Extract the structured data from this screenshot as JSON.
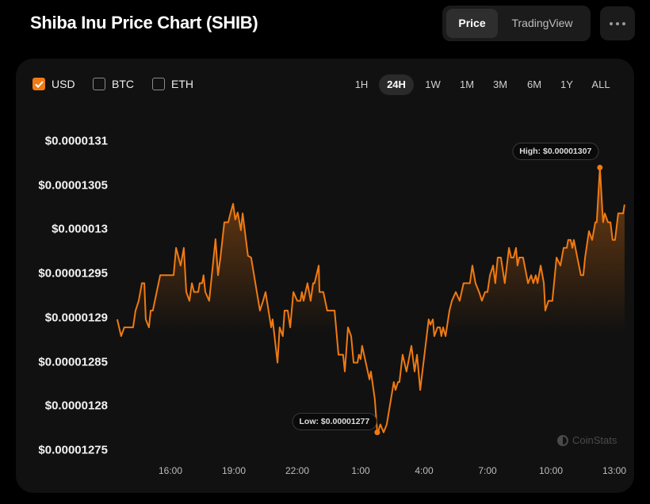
{
  "header": {
    "title": "Shiba Inu Price Chart (SHIB)",
    "view_options": [
      "Price",
      "TradingView"
    ],
    "active_view": "Price"
  },
  "currencies": [
    {
      "label": "USD",
      "checked": true
    },
    {
      "label": "BTC",
      "checked": false
    },
    {
      "label": "ETH",
      "checked": false
    }
  ],
  "ranges": [
    "1H",
    "24H",
    "1W",
    "1M",
    "3M",
    "6M",
    "1Y",
    "ALL"
  ],
  "active_range": "24H",
  "colors": {
    "accent": "#f07a12",
    "background": "#000000",
    "card": "#111111"
  },
  "watermark": "CoinStats",
  "chart_data": {
    "type": "area",
    "title": "",
    "xlabel": "",
    "ylabel": "",
    "y_ticks": [
      "$0.0000131",
      "$0.00001305",
      "$0.000013",
      "$0.00001295",
      "$0.0000129",
      "$0.00001285",
      "$0.0000128",
      "$0.00001275"
    ],
    "y_tick_values": [
      1.31e-05,
      1.305e-05,
      1.3e-05,
      1.295e-05,
      1.29e-05,
      1.285e-05,
      1.28e-05,
      1.275e-05
    ],
    "x_ticks": [
      "16:00",
      "19:00",
      "22:00",
      "1:00",
      "4:00",
      "7:00",
      "10:00",
      "13:00"
    ],
    "ylim": [
      1.275e-05,
      1.31e-05
    ],
    "grid": false,
    "high_label": "High: $0.00001307",
    "low_label": "Low: $0.00001277",
    "high": {
      "x": "12:19",
      "y": 1.307e-05
    },
    "low": {
      "x": "01:47",
      "y": 1.277e-05
    },
    "points": [
      [
        "13:29",
        1.2898e-05
      ],
      [
        "13:40",
        1.2879e-05
      ],
      [
        "13:49",
        1.2889e-05
      ],
      [
        "14:14",
        1.2889e-05
      ],
      [
        "14:21",
        1.2908e-05
      ],
      [
        "14:30",
        1.2919e-05
      ],
      [
        "14:39",
        1.2939e-05
      ],
      [
        "14:46",
        1.2939e-05
      ],
      [
        "14:50",
        1.2898e-05
      ],
      [
        "14:59",
        1.2889e-05
      ],
      [
        "15:04",
        1.2908e-05
      ],
      [
        "15:10",
        1.2908e-05
      ],
      [
        "15:31",
        1.2948e-05
      ],
      [
        "16:09",
        1.2948e-05
      ],
      [
        "16:16",
        1.2979e-05
      ],
      [
        "16:29",
        1.2959e-05
      ],
      [
        "16:38",
        1.2979e-05
      ],
      [
        "16:45",
        1.2929e-05
      ],
      [
        "16:54",
        1.2919e-05
      ],
      [
        "17:01",
        1.2939e-05
      ],
      [
        "17:07",
        1.2929e-05
      ],
      [
        "17:19",
        1.2929e-05
      ],
      [
        "17:23",
        1.2939e-05
      ],
      [
        "17:30",
        1.2939e-05
      ],
      [
        "17:34",
        1.2948e-05
      ],
      [
        "17:39",
        1.2929e-05
      ],
      [
        "17:50",
        1.2919e-05
      ],
      [
        "18:08",
        1.2989e-05
      ],
      [
        "18:15",
        1.2948e-05
      ],
      [
        "18:22",
        1.2968e-05
      ],
      [
        "18:33",
        1.3008e-05
      ],
      [
        "18:44",
        1.3008e-05
      ],
      [
        "18:51",
        1.3019e-05
      ],
      [
        "18:58",
        1.3029e-05
      ],
      [
        "19:04",
        1.3011e-05
      ],
      [
        "19:11",
        1.3019e-05
      ],
      [
        "19:20",
        1.2999e-05
      ],
      [
        "19:25",
        1.3018e-05
      ],
      [
        "19:40",
        1.297e-05
      ],
      [
        "19:49",
        1.2968e-05
      ],
      [
        "20:14",
        1.2908e-05
      ],
      [
        "20:23",
        1.2919e-05
      ],
      [
        "20:30",
        1.2929e-05
      ],
      [
        "20:46",
        1.2889e-05
      ],
      [
        "20:50",
        1.2898e-05
      ],
      [
        "21:04",
        1.2849e-05
      ],
      [
        "21:10",
        1.2889e-05
      ],
      [
        "21:19",
        1.2879e-05
      ],
      [
        "21:24",
        1.2908e-05
      ],
      [
        "21:33",
        1.2908e-05
      ],
      [
        "21:40",
        1.2889e-05
      ],
      [
        "21:49",
        1.2929e-05
      ],
      [
        "22:00",
        1.2919e-05
      ],
      [
        "22:09",
        1.2919e-05
      ],
      [
        "22:13",
        1.2929e-05
      ],
      [
        "22:18",
        1.2919e-05
      ],
      [
        "22:29",
        1.2939e-05
      ],
      [
        "22:38",
        1.2919e-05
      ],
      [
        "22:45",
        1.2939e-05
      ],
      [
        "22:49",
        1.2939e-05
      ],
      [
        "23:01",
        1.2959e-05
      ],
      [
        "23:03",
        1.2929e-05
      ],
      [
        "23:14",
        1.2929e-05
      ],
      [
        "23:25",
        1.2908e-05
      ],
      [
        "23:46",
        1.2908e-05
      ],
      [
        "23:57",
        1.2858e-05
      ],
      [
        "00:10",
        1.2858e-05
      ],
      [
        "00:15",
        1.2839e-05
      ],
      [
        "00:24",
        1.2889e-05
      ],
      [
        "00:33",
        1.2879e-05
      ],
      [
        "00:40",
        1.2849e-05
      ],
      [
        "00:51",
        1.2849e-05
      ],
      [
        "00:55",
        1.2858e-05
      ],
      [
        "01:00",
        1.2853e-05
      ],
      [
        "01:04",
        1.2868e-05
      ],
      [
        "01:25",
        1.283e-05
      ],
      [
        "01:29",
        1.2839e-05
      ],
      [
        "01:40",
        1.2808e-05
      ],
      [
        "01:47",
        1.277e-05
      ],
      [
        "01:49",
        1.277e-05
      ],
      [
        "01:56",
        1.2779e-05
      ],
      [
        "02:05",
        1.277e-05
      ],
      [
        "02:14",
        1.2779e-05
      ],
      [
        "02:34",
        1.2827e-05
      ],
      [
        "02:39",
        1.2818e-05
      ],
      [
        "02:46",
        1.2827e-05
      ],
      [
        "02:50",
        1.2827e-05
      ],
      [
        "02:59",
        1.2858e-05
      ],
      [
        "03:10",
        1.2839e-05
      ],
      [
        "03:24",
        1.2868e-05
      ],
      [
        "03:33",
        1.2839e-05
      ],
      [
        "03:40",
        1.2858e-05
      ],
      [
        "03:49",
        1.2818e-05
      ],
      [
        "04:04",
        1.2868e-05
      ],
      [
        "04:13",
        1.2898e-05
      ],
      [
        "04:18",
        1.2892e-05
      ],
      [
        "04:25",
        1.2898e-05
      ],
      [
        "04:29",
        1.2879e-05
      ],
      [
        "04:38",
        1.2889e-05
      ],
      [
        "04:45",
        1.2889e-05
      ],
      [
        "04:49",
        1.2879e-05
      ],
      [
        "04:54",
        1.2889e-05
      ],
      [
        "05:01",
        1.2879e-05
      ],
      [
        "05:12",
        1.2908e-05
      ],
      [
        "05:19",
        1.2919e-05
      ],
      [
        "05:30",
        1.2929e-05
      ],
      [
        "05:41",
        1.2919e-05
      ],
      [
        "05:52",
        1.2939e-05
      ],
      [
        "06:10",
        1.2939e-05
      ],
      [
        "06:17",
        1.2959e-05
      ],
      [
        "06:26",
        1.2939e-05
      ],
      [
        "06:37",
        1.2928e-05
      ],
      [
        "06:44",
        1.2919e-05
      ],
      [
        "06:53",
        1.2929e-05
      ],
      [
        "07:00",
        1.2929e-05
      ],
      [
        "07:07",
        1.2948e-05
      ],
      [
        "07:16",
        1.2959e-05
      ],
      [
        "07:22",
        1.2939e-05
      ],
      [
        "07:29",
        1.2968e-05
      ],
      [
        "07:38",
        1.2968e-05
      ],
      [
        "07:49",
        1.2939e-05
      ],
      [
        "08:01",
        1.2979e-05
      ],
      [
        "08:07",
        1.2968e-05
      ],
      [
        "08:14",
        1.2968e-05
      ],
      [
        "08:21",
        1.2979e-05
      ],
      [
        "08:25",
        1.2959e-05
      ],
      [
        "08:30",
        1.2968e-05
      ],
      [
        "08:41",
        1.2968e-05
      ],
      [
        "08:55",
        1.2939e-05
      ],
      [
        "09:04",
        1.2948e-05
      ],
      [
        "09:10",
        1.2939e-05
      ],
      [
        "09:17",
        1.2948e-05
      ],
      [
        "09:22",
        1.2939e-05
      ],
      [
        "09:31",
        1.2959e-05
      ],
      [
        "09:40",
        1.2939e-05
      ],
      [
        "09:44",
        1.2908e-05
      ],
      [
        "09:53",
        1.2919e-05
      ],
      [
        "10:04",
        1.2919e-05
      ],
      [
        "10:16",
        1.2968e-05
      ],
      [
        "10:27",
        1.2959e-05
      ],
      [
        "10:36",
        1.2979e-05
      ],
      [
        "10:45",
        1.2979e-05
      ],
      [
        "10:49",
        1.2988e-05
      ],
      [
        "10:56",
        1.2988e-05
      ],
      [
        "11:01",
        1.2979e-05
      ],
      [
        "11:05",
        1.2988e-05
      ],
      [
        "11:25",
        1.2948e-05
      ],
      [
        "11:32",
        1.2948e-05
      ],
      [
        "11:37",
        1.2968e-05
      ],
      [
        "11:48",
        1.2998e-05
      ],
      [
        "11:57",
        1.2988e-05
      ],
      [
        "12:06",
        1.3008e-05
      ],
      [
        "12:10",
        1.3008e-05
      ],
      [
        "12:19",
        1.307e-05
      ],
      [
        "12:28",
        1.3008e-05
      ],
      [
        "12:33",
        1.3018e-05
      ],
      [
        "12:42",
        1.3008e-05
      ],
      [
        "12:49",
        1.3008e-05
      ],
      [
        "12:55",
        1.2988e-05
      ],
      [
        "13:02",
        1.2988e-05
      ],
      [
        "13:11",
        1.3018e-05
      ],
      [
        "13:25",
        1.3018e-05
      ],
      [
        "13:29",
        1.3028e-05
      ]
    ]
  }
}
